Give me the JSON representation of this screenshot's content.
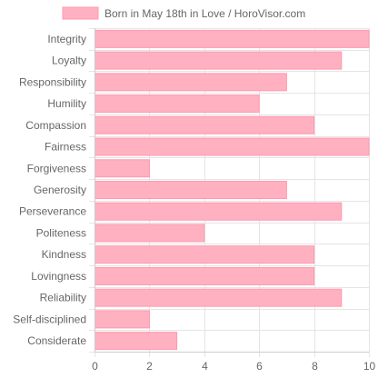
{
  "chart_data": {
    "type": "bar",
    "orientation": "horizontal",
    "legend": {
      "label": "Born in May 18th in Love / HoroVisor.com",
      "placement": "top-center"
    },
    "categories": [
      "Integrity",
      "Loyalty",
      "Responsibility",
      "Humility",
      "Compassion",
      "Fairness",
      "Forgiveness",
      "Generosity",
      "Perseverance",
      "Politeness",
      "Kindness",
      "Lovingness",
      "Reliability",
      "Self-disciplined",
      "Considerate"
    ],
    "series": [
      {
        "name": "Born in May 18th in Love / HoroVisor.com",
        "values": [
          10,
          9,
          7,
          6,
          8,
          10,
          2,
          7,
          9,
          4,
          8,
          8,
          9,
          2,
          3
        ],
        "color": "#ffb1c1",
        "border_color": "#ff99ad"
      }
    ],
    "xlim": [
      0,
      10
    ],
    "xticks": [
      "0",
      "2",
      "4",
      "6",
      "8",
      "10"
    ],
    "grid": true,
    "grid_color": "#e5e5e5",
    "axis_color": "#cccccc"
  }
}
